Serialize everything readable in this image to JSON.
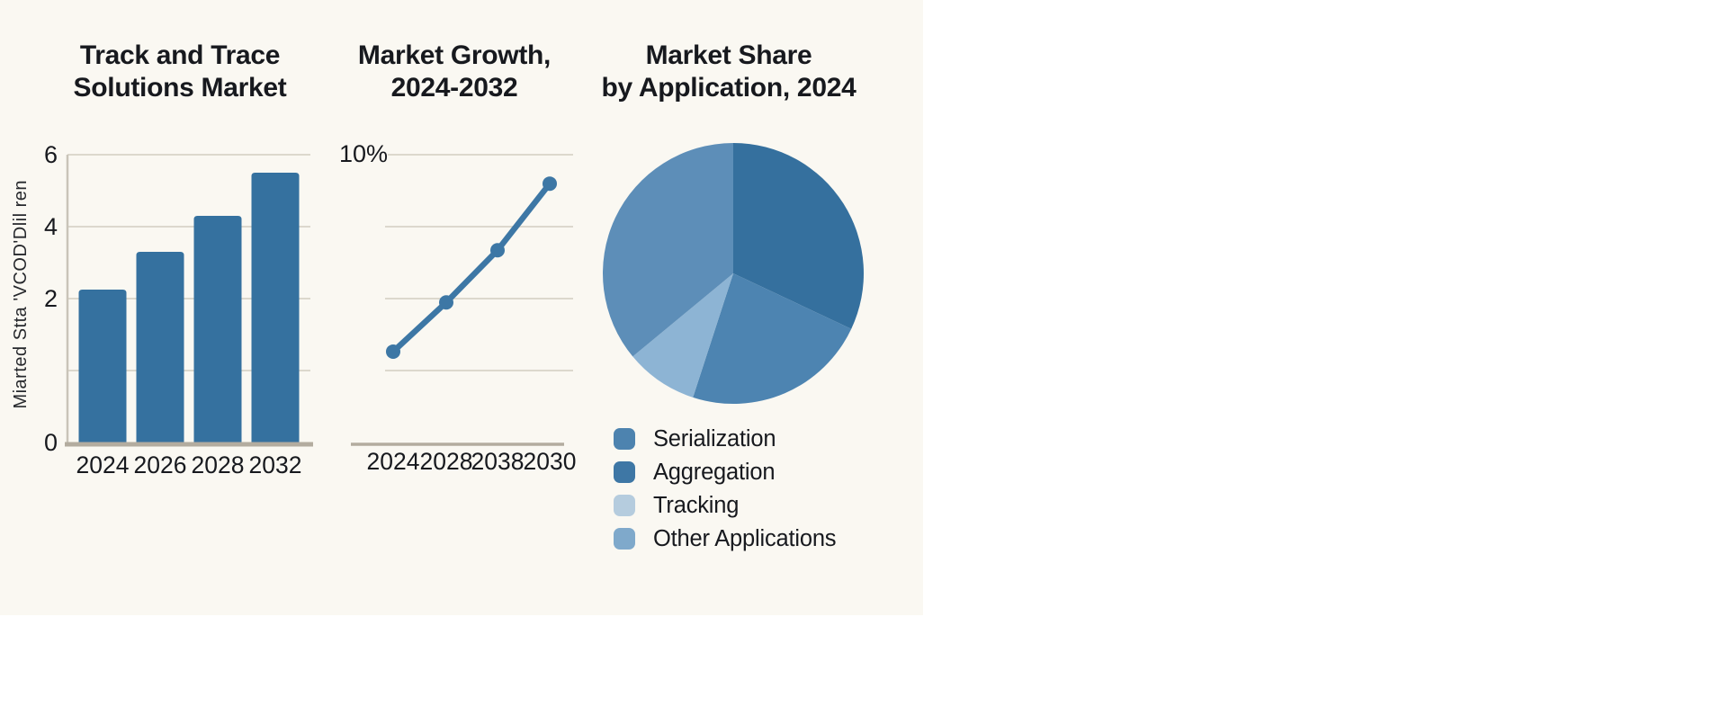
{
  "canvas": {
    "page_bg": "#ffffff",
    "sheet_bg": "#faf8f2",
    "text_color": "#17191e",
    "grid_color": "#dcd8cd",
    "axis_color": "#b3ac9f"
  },
  "bar_panel": {
    "title_line1": "Track and Trace",
    "title_line2": "Solutions Market",
    "y_axis_label": "Miarted Stta 'VCOD'Dlil ren"
  },
  "line_panel": {
    "title_line1": "Market Growth,",
    "title_line2": "2024-2032",
    "y_top_label": "10%"
  },
  "pie_panel": {
    "title_line1": "Market Share",
    "title_line2": "by Application, 2024",
    "legend": [
      {
        "label": "Serialization",
        "color": "#4d83af"
      },
      {
        "label": "Aggregation",
        "color": "#3e77a5"
      },
      {
        "label": "Tracking",
        "color": "#b5ccde"
      },
      {
        "label": "Other Applications",
        "color": "#7fa9cb"
      }
    ]
  },
  "chart_data": [
    {
      "type": "bar",
      "title": "Track and Trace Solutions Market",
      "ylabel": "Miarted Stta 'VCOD'Dlil ren",
      "categories": [
        "2024",
        "2026",
        "2028",
        "2032"
      ],
      "values": [
        2.25,
        3.3,
        4.3,
        5.5
      ],
      "yticks": [
        6,
        4,
        2,
        0
      ],
      "ylim": [
        0,
        6
      ],
      "bar_color": "#35719f",
      "grid": true,
      "legend_position": "none"
    },
    {
      "type": "line",
      "title": "Market Growth, 2024-2032",
      "categories": [
        "2024",
        "2028",
        "2038",
        "2030"
      ],
      "values": [
        3.2,
        4.9,
        6.7,
        9.0
      ],
      "yticks_labeled": [
        "10%"
      ],
      "ylim": [
        0,
        10
      ],
      "line_color": "#3d77a5",
      "marker": "circle",
      "grid": true,
      "legend_position": "none"
    },
    {
      "type": "pie",
      "title": "Market Share by Application, 2024",
      "start_angle_deg": 0,
      "direction": "clockwise",
      "slices": [
        {
          "label": "Aggregation",
          "value": 32,
          "color": "#35709e"
        },
        {
          "label": "Serialization",
          "value": 23,
          "color": "#4d84b1"
        },
        {
          "label": "Tracking",
          "value": 9,
          "color": "#8db4d4"
        },
        {
          "label": "Other Applications",
          "value": 36,
          "color": "#5d8eb8"
        }
      ],
      "legend_position": "bottom-left"
    }
  ]
}
